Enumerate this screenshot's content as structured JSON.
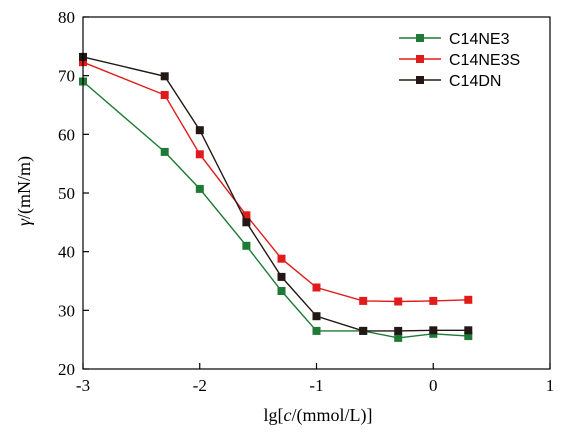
{
  "chart_data": {
    "type": "line",
    "xlabel_parts": {
      "prefix": "lg[",
      "var": "c",
      "suffix": "/(mmol/L)]"
    },
    "ylabel_parts": {
      "var": "γ",
      "suffix": "/(mN/m)"
    },
    "xlim": [
      -3,
      1
    ],
    "ylim": [
      20,
      80
    ],
    "xticks": [
      -3,
      -2,
      -1,
      0,
      1
    ],
    "yticks": [
      20,
      30,
      40,
      50,
      60,
      70,
      80
    ],
    "xtick_labels": [
      "-3",
      "-2",
      "-1",
      "0",
      "1"
    ],
    "ytick_labels": [
      "20",
      "30",
      "40",
      "50",
      "60",
      "70",
      "80"
    ],
    "legend_position": "top-right",
    "grid": false,
    "series": [
      {
        "name": "C14NE3",
        "color": "#1e7a35",
        "x": [
          -3.0,
          -2.3,
          -2.0,
          -1.6,
          -1.3,
          -1.0,
          -0.6,
          -0.3,
          0.0,
          0.3
        ],
        "y": [
          69.0,
          57.0,
          50.7,
          41.0,
          33.3,
          26.5,
          26.5,
          25.3,
          26.0,
          25.6
        ]
      },
      {
        "name": "C14NE3S",
        "color": "#e01b1b",
        "x": [
          -3.0,
          -2.3,
          -2.0,
          -1.6,
          -1.3,
          -1.0,
          -0.6,
          -0.3,
          0.0,
          0.3
        ],
        "y": [
          72.3,
          66.7,
          56.6,
          46.2,
          38.8,
          33.9,
          31.6,
          31.5,
          31.6,
          31.8
        ]
      },
      {
        "name": "C14DN",
        "color": "#231815",
        "x": [
          -3.0,
          -2.3,
          -2.0,
          -1.6,
          -1.3,
          -1.0,
          -0.6,
          -0.3,
          0.0,
          0.3
        ],
        "y": [
          73.2,
          69.9,
          60.7,
          45.0,
          35.7,
          29.0,
          26.5,
          26.5,
          26.6,
          26.6
        ]
      }
    ]
  }
}
